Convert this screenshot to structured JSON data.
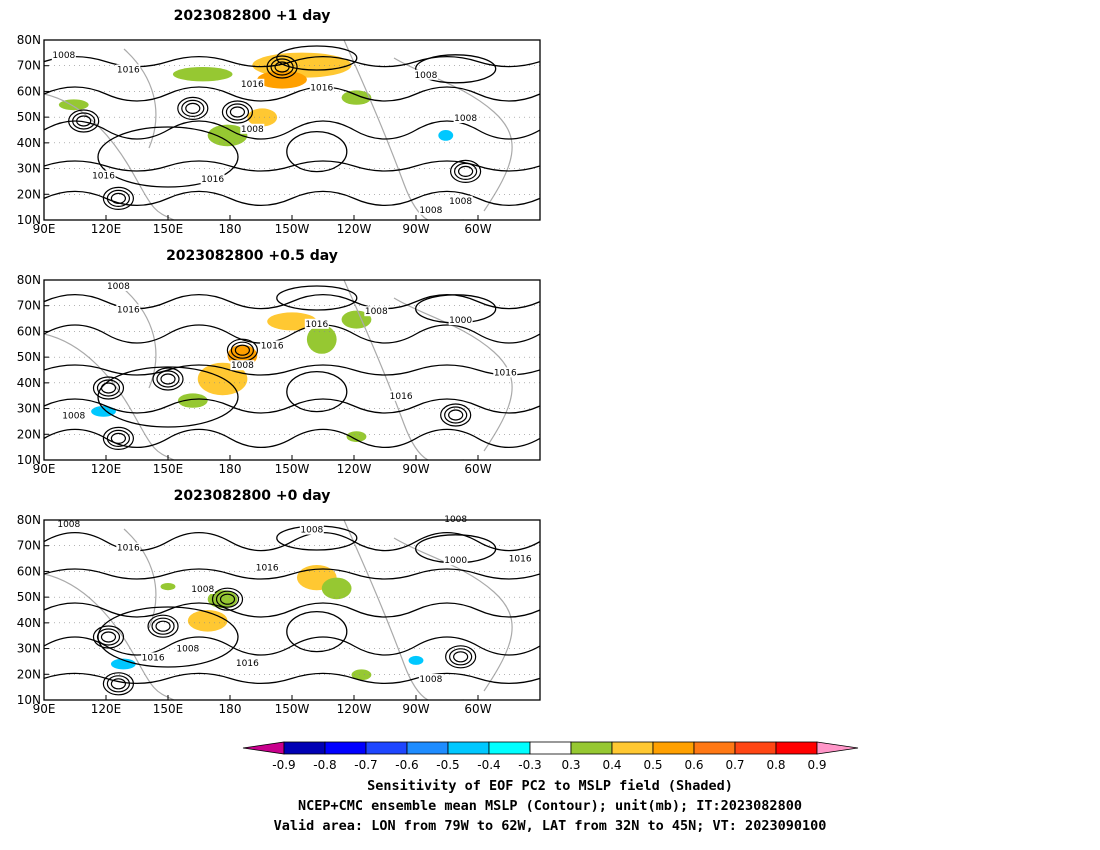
{
  "chart_data": {
    "type": "contour_map",
    "panels": [
      {
        "title": "2023082800  +1 day",
        "contour_labels": [
          "1008",
          "1016",
          "1016",
          "1016",
          "1008",
          "1008",
          "1016",
          "1008",
          "1016",
          "1008",
          "1008"
        ]
      },
      {
        "title": "2023082800  +0.5 day",
        "contour_labels": [
          "1008",
          "1016",
          "1016",
          "1008",
          "1016",
          "1008",
          "1000",
          "1016",
          "1016",
          "1008"
        ]
      },
      {
        "title": "2023082800  +0 day",
        "contour_labels": [
          "1008",
          "1016",
          "1016",
          "1008",
          "1008",
          "1008",
          "1000",
          "1016",
          "1008",
          "1016",
          "1016",
          "1008"
        ]
      }
    ],
    "x_ticks": [
      "90E",
      "120E",
      "150E",
      "180",
      "150W",
      "120W",
      "90W",
      "60W"
    ],
    "y_ticks": [
      "80N",
      "70N",
      "60N",
      "50N",
      "40N",
      "30N",
      "20N",
      "10N"
    ],
    "colorbar": {
      "colors": [
        "#c8008c",
        "#0000b4",
        "#0000ff",
        "#1e46ff",
        "#1e8cff",
        "#00c8ff",
        "#00ffff",
        "#ffffff",
        "#96c832",
        "#ffc832",
        "#ffa000",
        "#ff7814",
        "#ff4614",
        "#ff0000",
        "#ff96c8"
      ],
      "tick_labels": [
        "-0.9",
        "-0.8",
        "-0.7",
        "-0.6",
        "-0.5",
        "-0.4",
        "-0.3",
        "0.3",
        "0.4",
        "0.5",
        "0.6",
        "0.7",
        "0.8",
        "0.9"
      ]
    },
    "caption_lines": [
      "Sensitivity of EOF PC2 to MSLP field (Shaded)",
      "NCEP+CMC ensemble mean MSLP (Contour); unit(mb); IT:2023082800",
      "Valid area: LON from 79W to 62W, LAT from 32N to 45N; VT: 2023090100"
    ]
  }
}
